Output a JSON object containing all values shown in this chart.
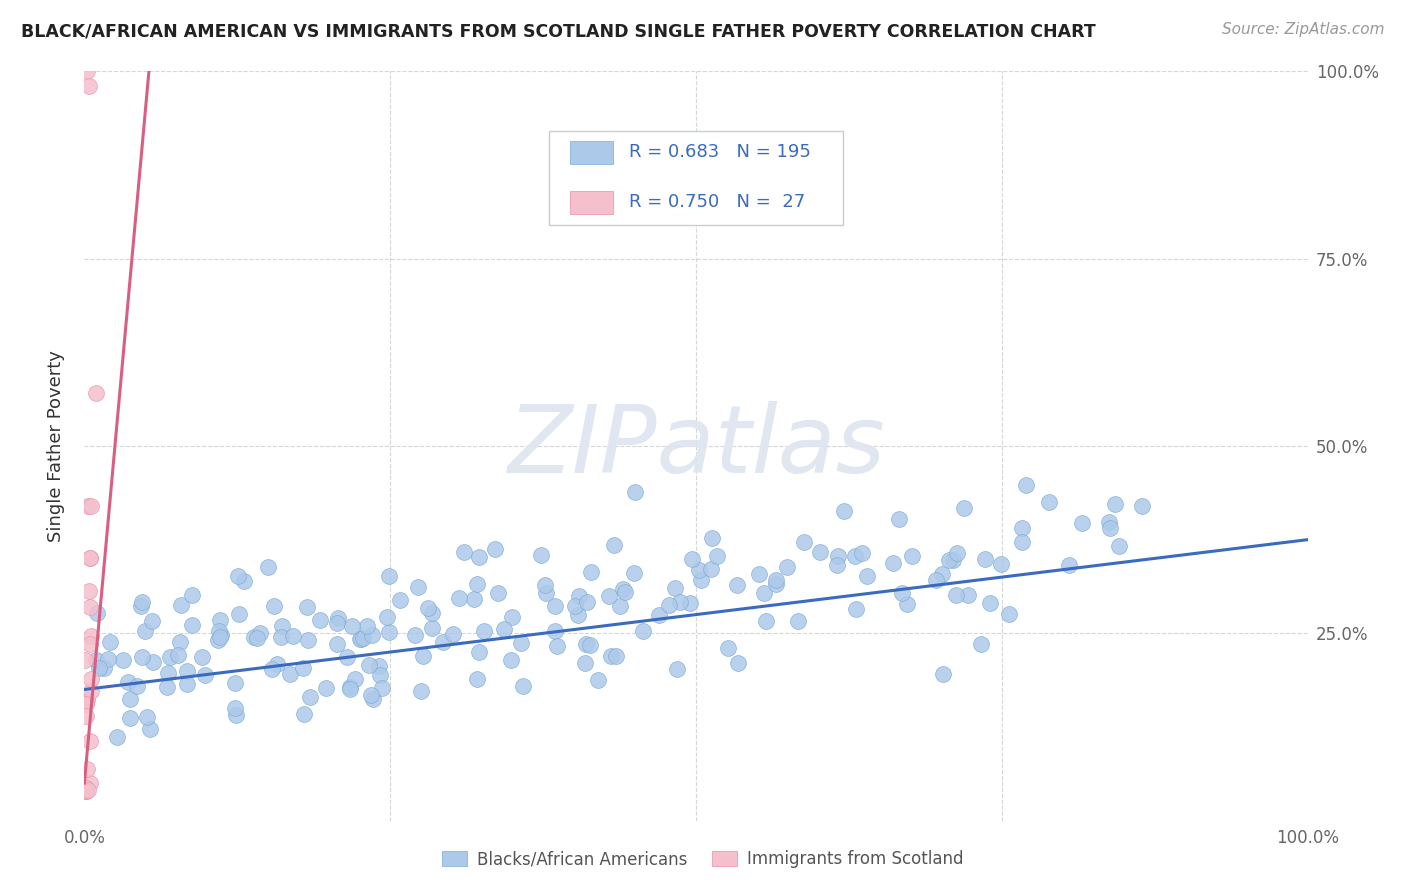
{
  "title": "BLACK/AFRICAN AMERICAN VS IMMIGRANTS FROM SCOTLAND SINGLE FATHER POVERTY CORRELATION CHART",
  "source": "Source: ZipAtlas.com",
  "ylabel": "Single Father Poverty",
  "blue_R": 0.683,
  "blue_N": 195,
  "pink_R": 0.75,
  "pink_N": 27,
  "blue_color": "#adc9ea",
  "blue_edge_color": "#7aaad4",
  "blue_line_color": "#3a6bbf",
  "pink_color": "#f5bfcc",
  "pink_edge_color": "#e890a8",
  "pink_line_color": "#d95f82",
  "background": "#ffffff",
  "grid_color": "#cccccc",
  "xlim": [
    0,
    1.0
  ],
  "ylim": [
    0,
    1.0
  ],
  "blue_line_x0": 0.0,
  "blue_line_y0": 0.175,
  "blue_line_x1": 1.0,
  "blue_line_y1": 0.375,
  "pink_line_intercept": 0.05,
  "pink_line_slope": 18.0,
  "watermark_color": "#dde5f0",
  "watermark_alpha": 0.9
}
